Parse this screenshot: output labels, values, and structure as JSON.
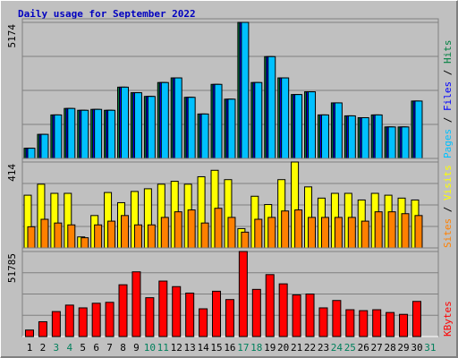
{
  "chart_data": [
    {
      "type": "bar",
      "title": "Daily usage for September 2022",
      "legend_separator": "/",
      "ylim": [
        0,
        5174
      ],
      "yticks": [
        5174
      ],
      "series": [
        {
          "name": "Hits",
          "color": "#008040",
          "values": [
            387,
            915,
            1654,
            1900,
            1830,
            1865,
            1830,
            2710,
            2499,
            2358,
            2886,
            3062,
            2323,
            1689,
            2816,
            2253,
            5174,
            2886,
            3872,
            3062,
            2429,
            2534,
            1654,
            2112,
            1619,
            1549,
            1654,
            1197,
            1197,
            2182,
            null
          ]
        },
        {
          "name": "Files",
          "color": "#0000ff",
          "values": [
            387,
            915,
            1654,
            1900,
            1830,
            1865,
            1830,
            2710,
            2499,
            2358,
            2886,
            3062,
            2323,
            1689,
            2816,
            2253,
            5174,
            2886,
            3872,
            3062,
            2429,
            2534,
            1654,
            2112,
            1619,
            1549,
            1654,
            1197,
            1197,
            2182,
            null
          ]
        },
        {
          "name": "Pages",
          "color": "#00c0ff",
          "values": [
            387,
            915,
            1654,
            1900,
            1830,
            1865,
            1830,
            2710,
            2499,
            2358,
            2886,
            3062,
            2323,
            1689,
            2816,
            2253,
            5174,
            2886,
            3872,
            3062,
            2429,
            2534,
            1654,
            2112,
            1619,
            1549,
            1654,
            1197,
            1197,
            2182,
            null
          ]
        }
      ]
    },
    {
      "type": "bar",
      "ylim": [
        0,
        414
      ],
      "yticks": [
        414
      ],
      "series": [
        {
          "name": "Visits",
          "color": "#ffff00",
          "values": [
            254,
            307,
            263,
            263,
            53,
            156,
            267,
            218,
            272,
            285,
            307,
            321,
            307,
            343,
            374,
            329,
            93,
            249,
            209,
            329,
            414,
            294,
            240,
            263,
            263,
            231,
            263,
            254,
            240,
            231,
            null
          ]
        },
        {
          "name": "Sites",
          "color": "#ff8000",
          "values": [
            102,
            138,
            120,
            111,
            49,
            111,
            129,
            156,
            111,
            111,
            147,
            174,
            183,
            120,
            191,
            147,
            76,
            138,
            147,
            178,
            183,
            147,
            147,
            147,
            147,
            129,
            174,
            174,
            165,
            156,
            null
          ]
        }
      ]
    },
    {
      "type": "bar",
      "ylim": [
        0,
        51785
      ],
      "yticks": [
        51785
      ],
      "categories": [
        "1",
        "2",
        "3",
        "4",
        "5",
        "6",
        "7",
        "8",
        "9",
        "10",
        "11",
        "12",
        "13",
        "14",
        "15",
        "16",
        "17",
        "18",
        "19",
        "20",
        "21",
        "22",
        "23",
        "24",
        "25",
        "26",
        "27",
        "28",
        "29",
        "30",
        "31"
      ],
      "label_colors": [
        "#000000",
        "#000000",
        "#00805c",
        "#00805c",
        "#000000",
        "#000000",
        "#000000",
        "#000000",
        "#000000",
        "#00805c",
        "#00805c",
        "#000000",
        "#000000",
        "#000000",
        "#000000",
        "#000000",
        "#00805c",
        "#00805c",
        "#000000",
        "#000000",
        "#000000",
        "#000000",
        "#000000",
        "#00805c",
        "#00805c",
        "#000000",
        "#000000",
        "#000000",
        "#000000",
        "#000000",
        "#00805c"
      ],
      "series": [
        {
          "name": "KBytes",
          "color": "#ff0000",
          "values": [
            3940,
            9006,
            15198,
            19138,
            17450,
            20264,
            20826,
            31521,
            39401,
            23640,
            33773,
            30396,
            26456,
            16886,
            27582,
            22515,
            51785,
            28707,
            37713,
            32084,
            25330,
            25893,
            17450,
            21953,
            16324,
            15761,
            16324,
            14635,
            13510,
            21390,
            null
          ]
        }
      ]
    }
  ]
}
